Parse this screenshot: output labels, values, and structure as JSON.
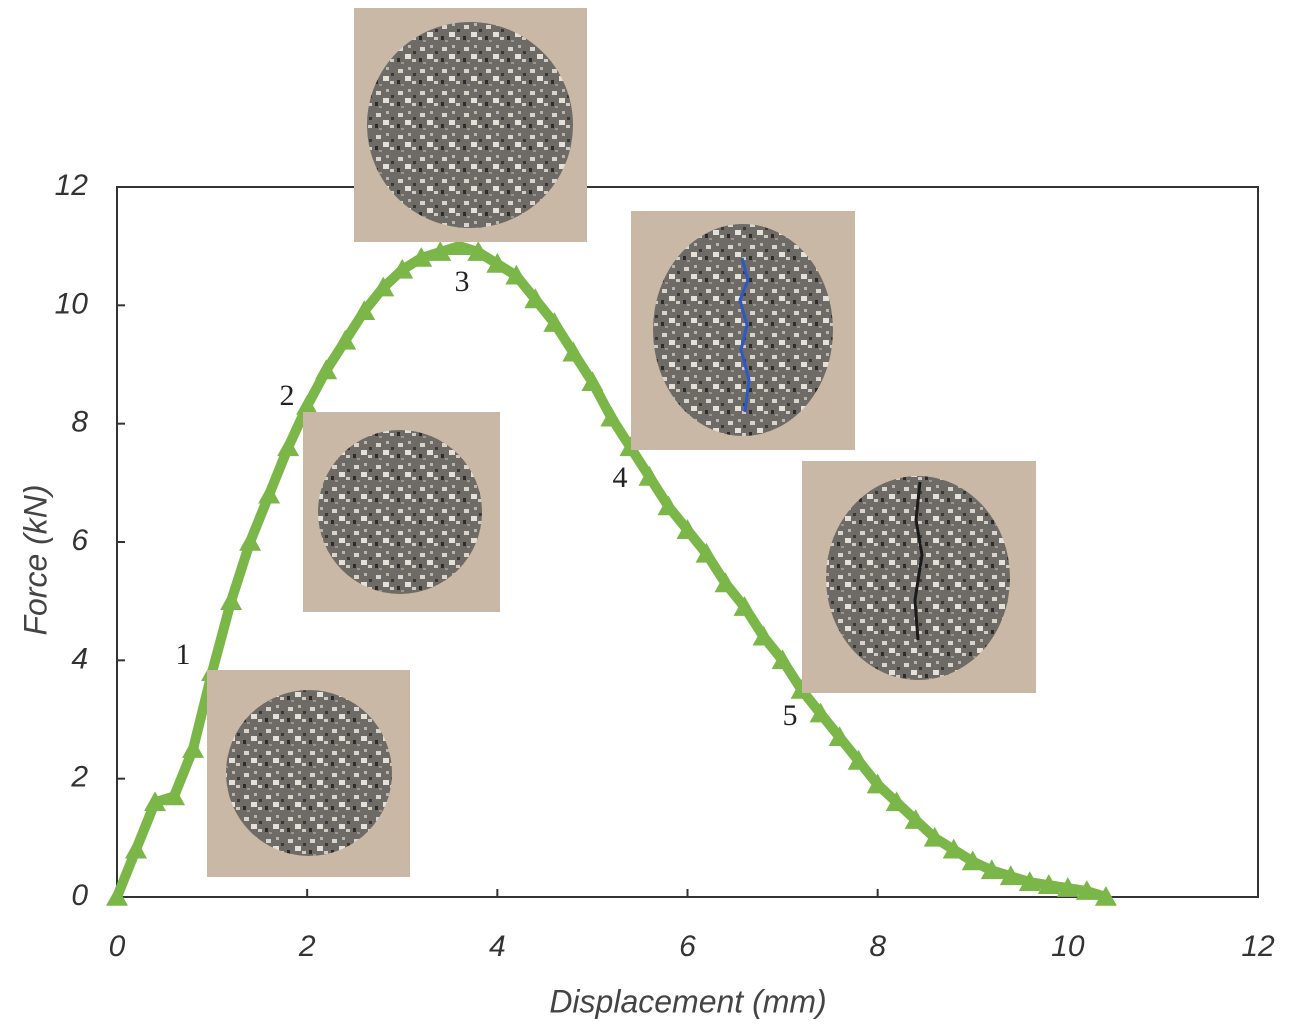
{
  "chart_data": {
    "type": "scatter-line",
    "x_label": "Displacement (mm)",
    "y_label": "Force (kN)",
    "x": [
      0,
      0.2,
      0.4,
      0.6,
      0.8,
      1.0,
      1.2,
      1.4,
      1.6,
      1.8,
      2.0,
      2.2,
      2.4,
      2.6,
      2.8,
      3.0,
      3.2,
      3.4,
      3.6,
      3.8,
      4.0,
      4.2,
      4.4,
      4.6,
      4.8,
      5.0,
      5.2,
      5.4,
      5.6,
      5.8,
      6.0,
      6.2,
      6.4,
      6.6,
      6.8,
      7.0,
      7.2,
      7.4,
      7.6,
      7.8,
      8.0,
      8.2,
      8.4,
      8.6,
      8.8,
      9.0,
      9.2,
      9.4,
      9.6,
      9.8,
      10.0,
      10.2,
      10.4
    ],
    "values": [
      0,
      0.8,
      1.6,
      1.7,
      2.5,
      3.8,
      5.0,
      6.0,
      6.8,
      7.6,
      8.3,
      8.9,
      9.4,
      9.9,
      10.3,
      10.6,
      10.8,
      10.9,
      11.0,
      10.9,
      10.7,
      10.5,
      10.1,
      9.7,
      9.2,
      8.7,
      8.1,
      7.6,
      7.1,
      6.6,
      6.2,
      5.8,
      5.3,
      4.9,
      4.4,
      4.0,
      3.5,
      3.1,
      2.7,
      2.3,
      1.9,
      1.6,
      1.3,
      1.0,
      0.8,
      0.6,
      0.45,
      0.35,
      0.25,
      0.2,
      0.15,
      0.1,
      0.0
    ],
    "color": "#7ab648",
    "marker": "triangle",
    "xlim": [
      0,
      12
    ],
    "ylim": [
      0,
      12
    ],
    "xticks": [
      0,
      2,
      4,
      6,
      8,
      10,
      12
    ],
    "yticks": [
      0,
      2,
      4,
      6,
      8,
      10,
      12
    ],
    "annotations": [
      "1",
      "2",
      "3",
      "4",
      "5"
    ]
  }
}
